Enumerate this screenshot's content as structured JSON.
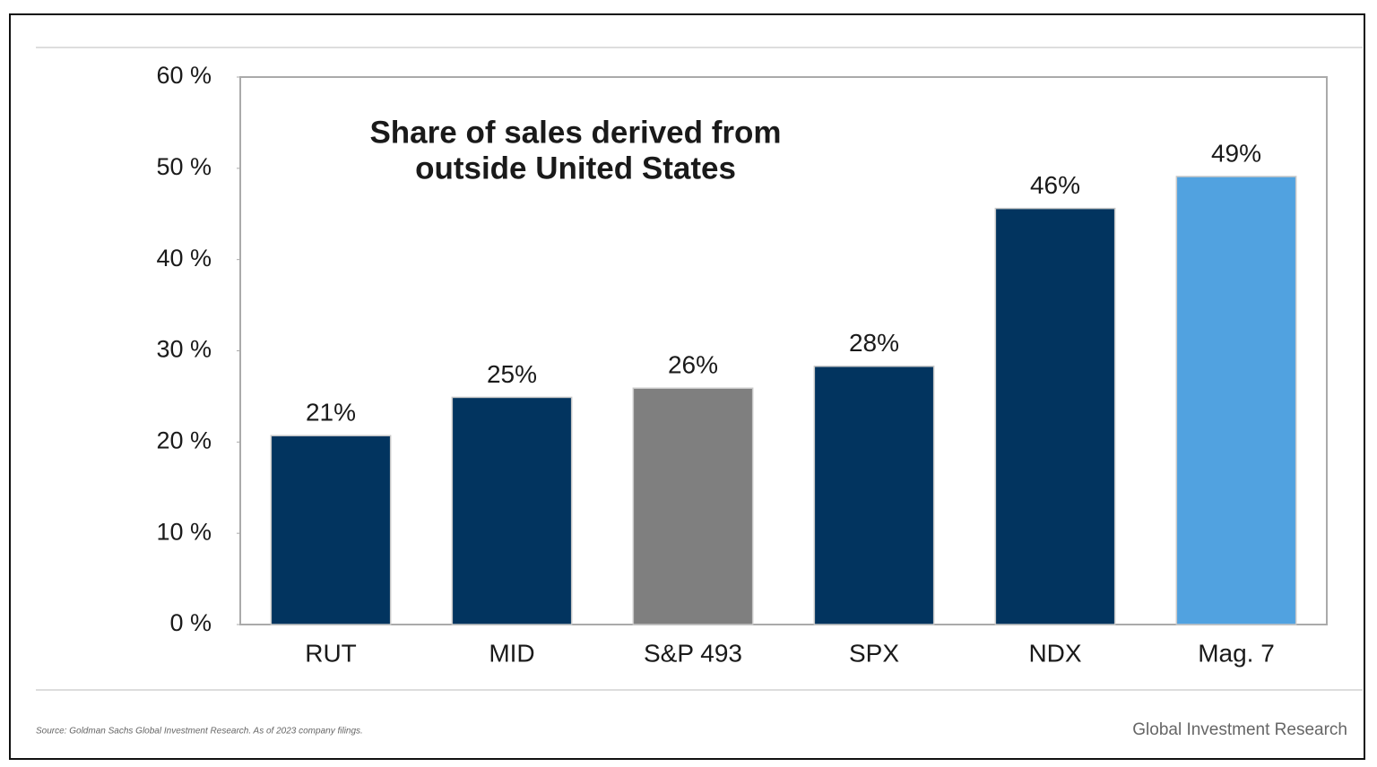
{
  "chart_data": {
    "type": "bar",
    "title": [
      "Share of sales derived from",
      "outside United States"
    ],
    "categories": [
      "RUT",
      "MID",
      "S&P 493",
      "SPX",
      "NDX",
      "Mag. 7"
    ],
    "values": [
      20.7,
      24.9,
      25.9,
      28.3,
      45.6,
      49.1
    ],
    "value_labels": [
      "21%",
      "25%",
      "26%",
      "28%",
      "46%",
      "49%"
    ],
    "colors": [
      "#02345f",
      "#02345f",
      "#7f7f7f",
      "#02345f",
      "#02345f",
      "#51a2e0"
    ],
    "ylim": [
      0,
      60
    ],
    "yticks": [
      {
        "value": 0,
        "label": "0 %"
      },
      {
        "value": 10,
        "label": "10 %"
      },
      {
        "value": 20,
        "label": "20 %"
      },
      {
        "value": 30,
        "label": "30 %"
      },
      {
        "value": 40,
        "label": "40 %"
      },
      {
        "value": 50,
        "label": "50 %"
      },
      {
        "value": 60,
        "label": "60 %"
      }
    ],
    "source": "Source: Goldman Sachs Global Investment Research. As of 2023 company filings.",
    "brand": "Global Investment Research"
  }
}
